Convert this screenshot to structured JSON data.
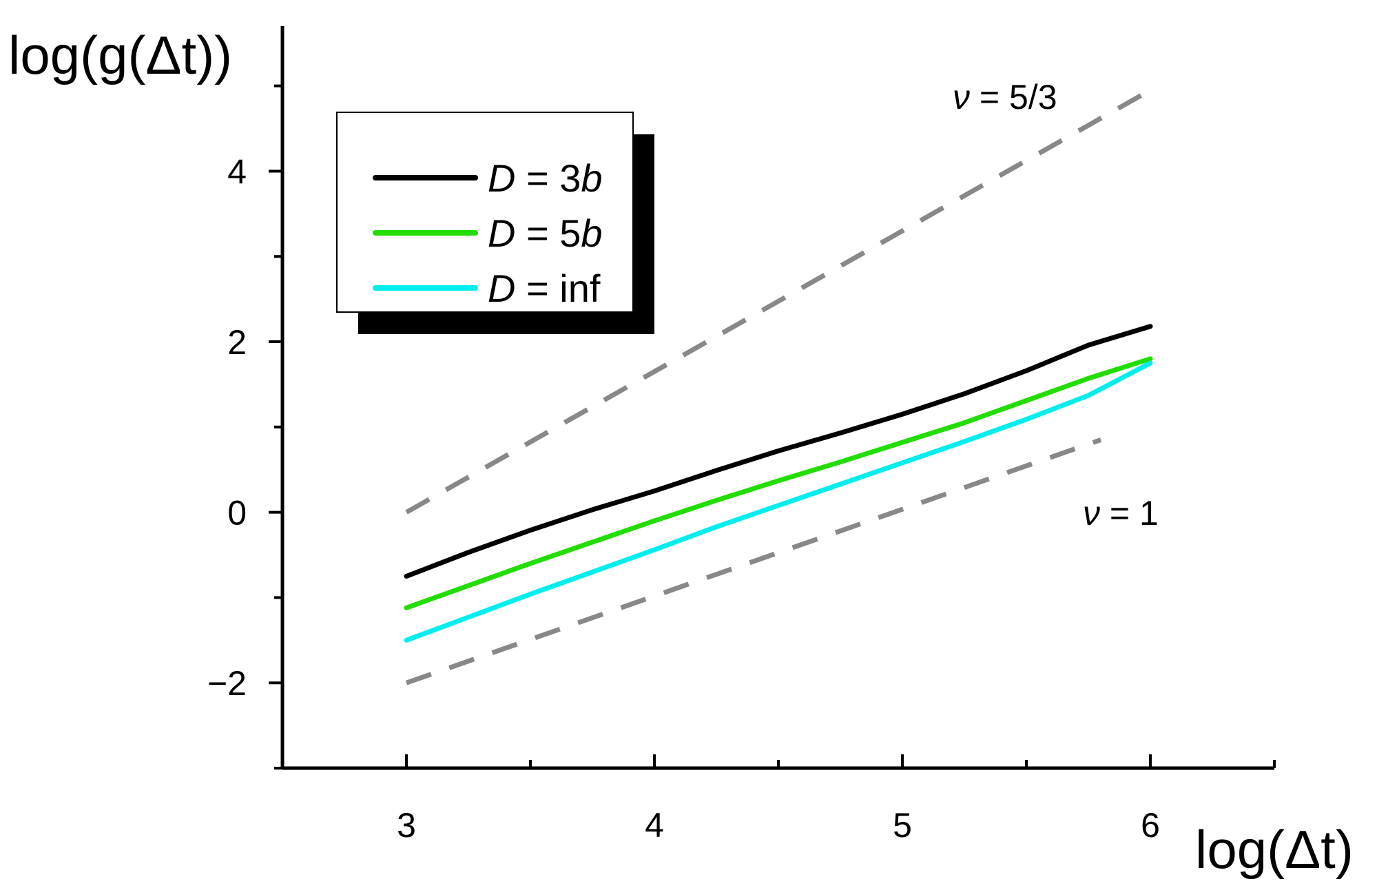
{
  "chart_data": {
    "type": "line",
    "xlabel": "log(Δt)",
    "ylabel": "log(g(Δt))",
    "xlim": [
      2.5,
      6.5
    ],
    "ylim": [
      -3,
      5.7
    ],
    "x_ticks": [
      3,
      4,
      5,
      6
    ],
    "y_ticks": [
      -2,
      0,
      2,
      4
    ],
    "x_tick_labels": [
      "3",
      "4",
      "5",
      "6"
    ],
    "y_tick_labels": [
      "−2",
      "0",
      "2",
      "4"
    ],
    "grid": false,
    "legend_position": "top-left",
    "series": [
      {
        "name": "D = 3b",
        "color": "#000000",
        "x": [
          3.0,
          3.25,
          3.5,
          3.75,
          4.0,
          4.25,
          4.5,
          4.75,
          5.0,
          5.25,
          5.5,
          5.75,
          6.0
        ],
        "y": [
          -0.75,
          -0.47,
          -0.21,
          0.03,
          0.25,
          0.49,
          0.72,
          0.93,
          1.15,
          1.39,
          1.66,
          1.96,
          2.18
        ]
      },
      {
        "name": "D = 5b",
        "color": "#22dd00",
        "x": [
          3.0,
          3.25,
          3.5,
          3.75,
          4.0,
          4.25,
          4.5,
          4.75,
          5.0,
          5.25,
          5.5,
          5.75,
          6.0
        ],
        "y": [
          -1.12,
          -0.86,
          -0.6,
          -0.35,
          -0.1,
          0.14,
          0.37,
          0.59,
          0.82,
          1.05,
          1.31,
          1.57,
          1.8
        ]
      },
      {
        "name": "D = inf",
        "color": "#00eeee",
        "x": [
          3.0,
          3.25,
          3.5,
          3.75,
          4.0,
          4.25,
          4.5,
          4.75,
          5.0,
          5.25,
          5.5,
          5.75,
          6.0
        ],
        "y": [
          -1.5,
          -1.23,
          -0.96,
          -0.7,
          -0.44,
          -0.17,
          0.08,
          0.33,
          0.58,
          0.83,
          1.09,
          1.37,
          1.75
        ]
      }
    ],
    "reference_lines": [
      {
        "label_symbol": "ν",
        "label_value": "= 5/3",
        "color": "#888888",
        "x": [
          3.0,
          6.0
        ],
        "y": [
          0.0,
          4.95
        ]
      },
      {
        "label_symbol": "ν",
        "label_value": "= 1",
        "color": "#888888",
        "x": [
          3.0,
          5.8
        ],
        "y": [
          -2.0,
          0.85
        ]
      }
    ],
    "legend": [
      {
        "prefix": "D",
        "suffix": " = 3",
        "suffix_italic": "b"
      },
      {
        "prefix": "D",
        "suffix": " = 5",
        "suffix_italic": "b"
      },
      {
        "prefix": "D",
        "suffix": " = inf",
        "suffix_italic": ""
      }
    ]
  }
}
